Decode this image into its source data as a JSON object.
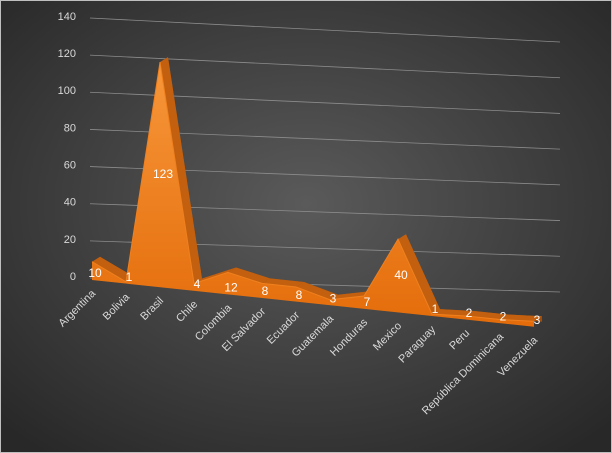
{
  "chart_data": {
    "type": "area",
    "categories": [
      "Argentina",
      "Bolivia",
      "Brasil",
      "Chile",
      "Colombia",
      "El Salvador",
      "Ecuador",
      "Guatemala",
      "Honduras",
      "Mexico",
      "Paraguay",
      "Peru",
      "República Dominicana",
      "Venezuela"
    ],
    "values": [
      10,
      1,
      123,
      4,
      12,
      8,
      8,
      3,
      7,
      40,
      1,
      2,
      2,
      3
    ],
    "color": "#f0801f",
    "ylim": [
      0,
      140
    ],
    "yticks": [
      0,
      20,
      40,
      60,
      80,
      100,
      120,
      140
    ],
    "grid": true
  }
}
